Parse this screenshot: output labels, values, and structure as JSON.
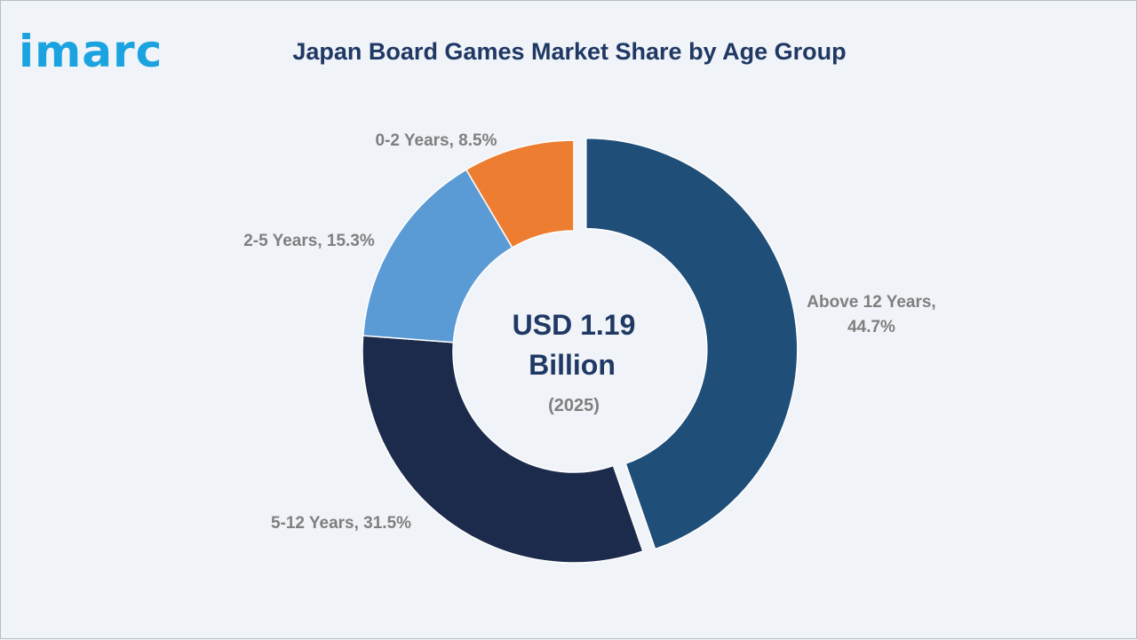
{
  "brand": {
    "logo_text": "imarc",
    "accent": "#1ba3e0"
  },
  "chart_data": {
    "type": "pie",
    "variant": "donut",
    "title": "Japan Board Games Market Share by Age Group",
    "center_label": {
      "value_line1": "USD 1.19",
      "value_line2": "Billion",
      "year": "(2025)"
    },
    "slices": [
      {
        "label_line1": "Above 12 Years,",
        "label_line2": "44.7%",
        "value": 44.7,
        "color": "#1f4e78",
        "exploded": true
      },
      {
        "label_line1": "5-12 Years, 31.5%",
        "label_line2": "",
        "value": 31.5,
        "color": "#1c2b4c",
        "exploded": false
      },
      {
        "label_line1": "2-5 Years, 15.3%",
        "label_line2": "",
        "value": 15.3,
        "color": "#5b9bd5",
        "exploded": false
      },
      {
        "label_line1": "0-2 Years, 8.5%",
        "label_line2": "",
        "value": 8.5,
        "color": "#ed7d31",
        "exploded": false
      }
    ]
  }
}
